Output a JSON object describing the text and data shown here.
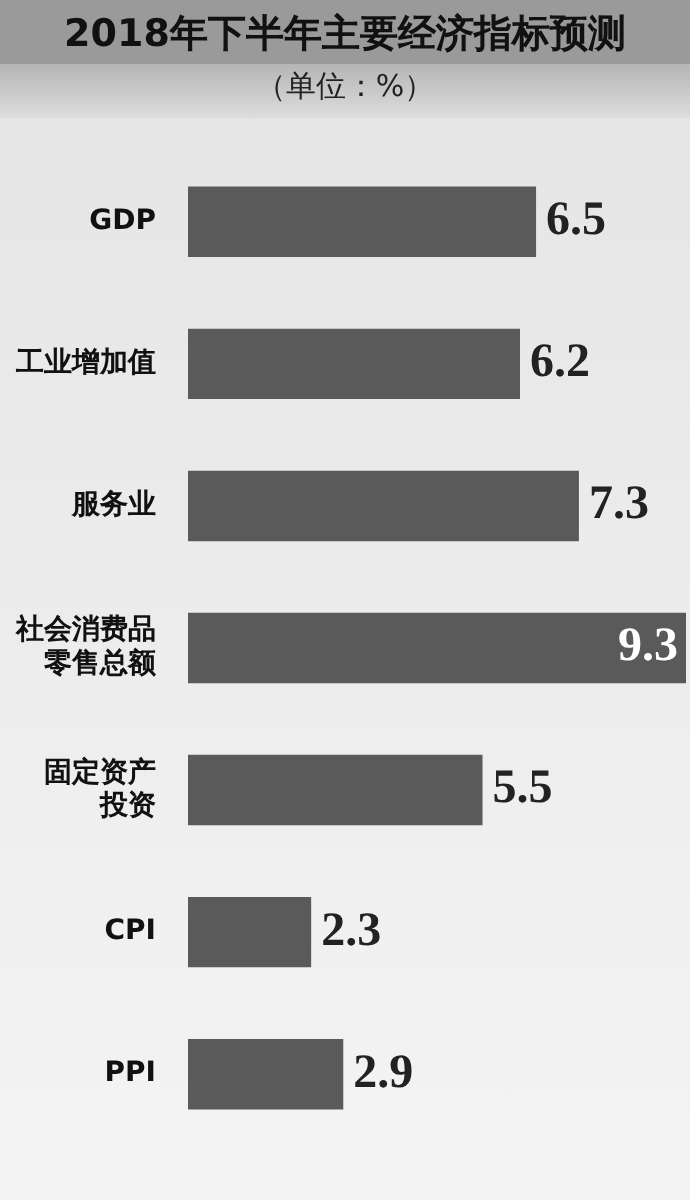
{
  "chart_data": {
    "type": "bar",
    "orientation": "horizontal",
    "title": "2018年下半年主要经济指标预测",
    "subtitle": "（单位：%）",
    "categories": [
      "GDP",
      "工业增加值",
      "服务业",
      "社会消费品零售总额",
      "固定资产投资",
      "CPI",
      "PPI"
    ],
    "values": [
      6.5,
      6.2,
      7.3,
      9.3,
      5.5,
      2.3,
      2.9
    ],
    "color": "#5a5a5a",
    "data_labels": true,
    "grid": false,
    "legend": false
  }
}
